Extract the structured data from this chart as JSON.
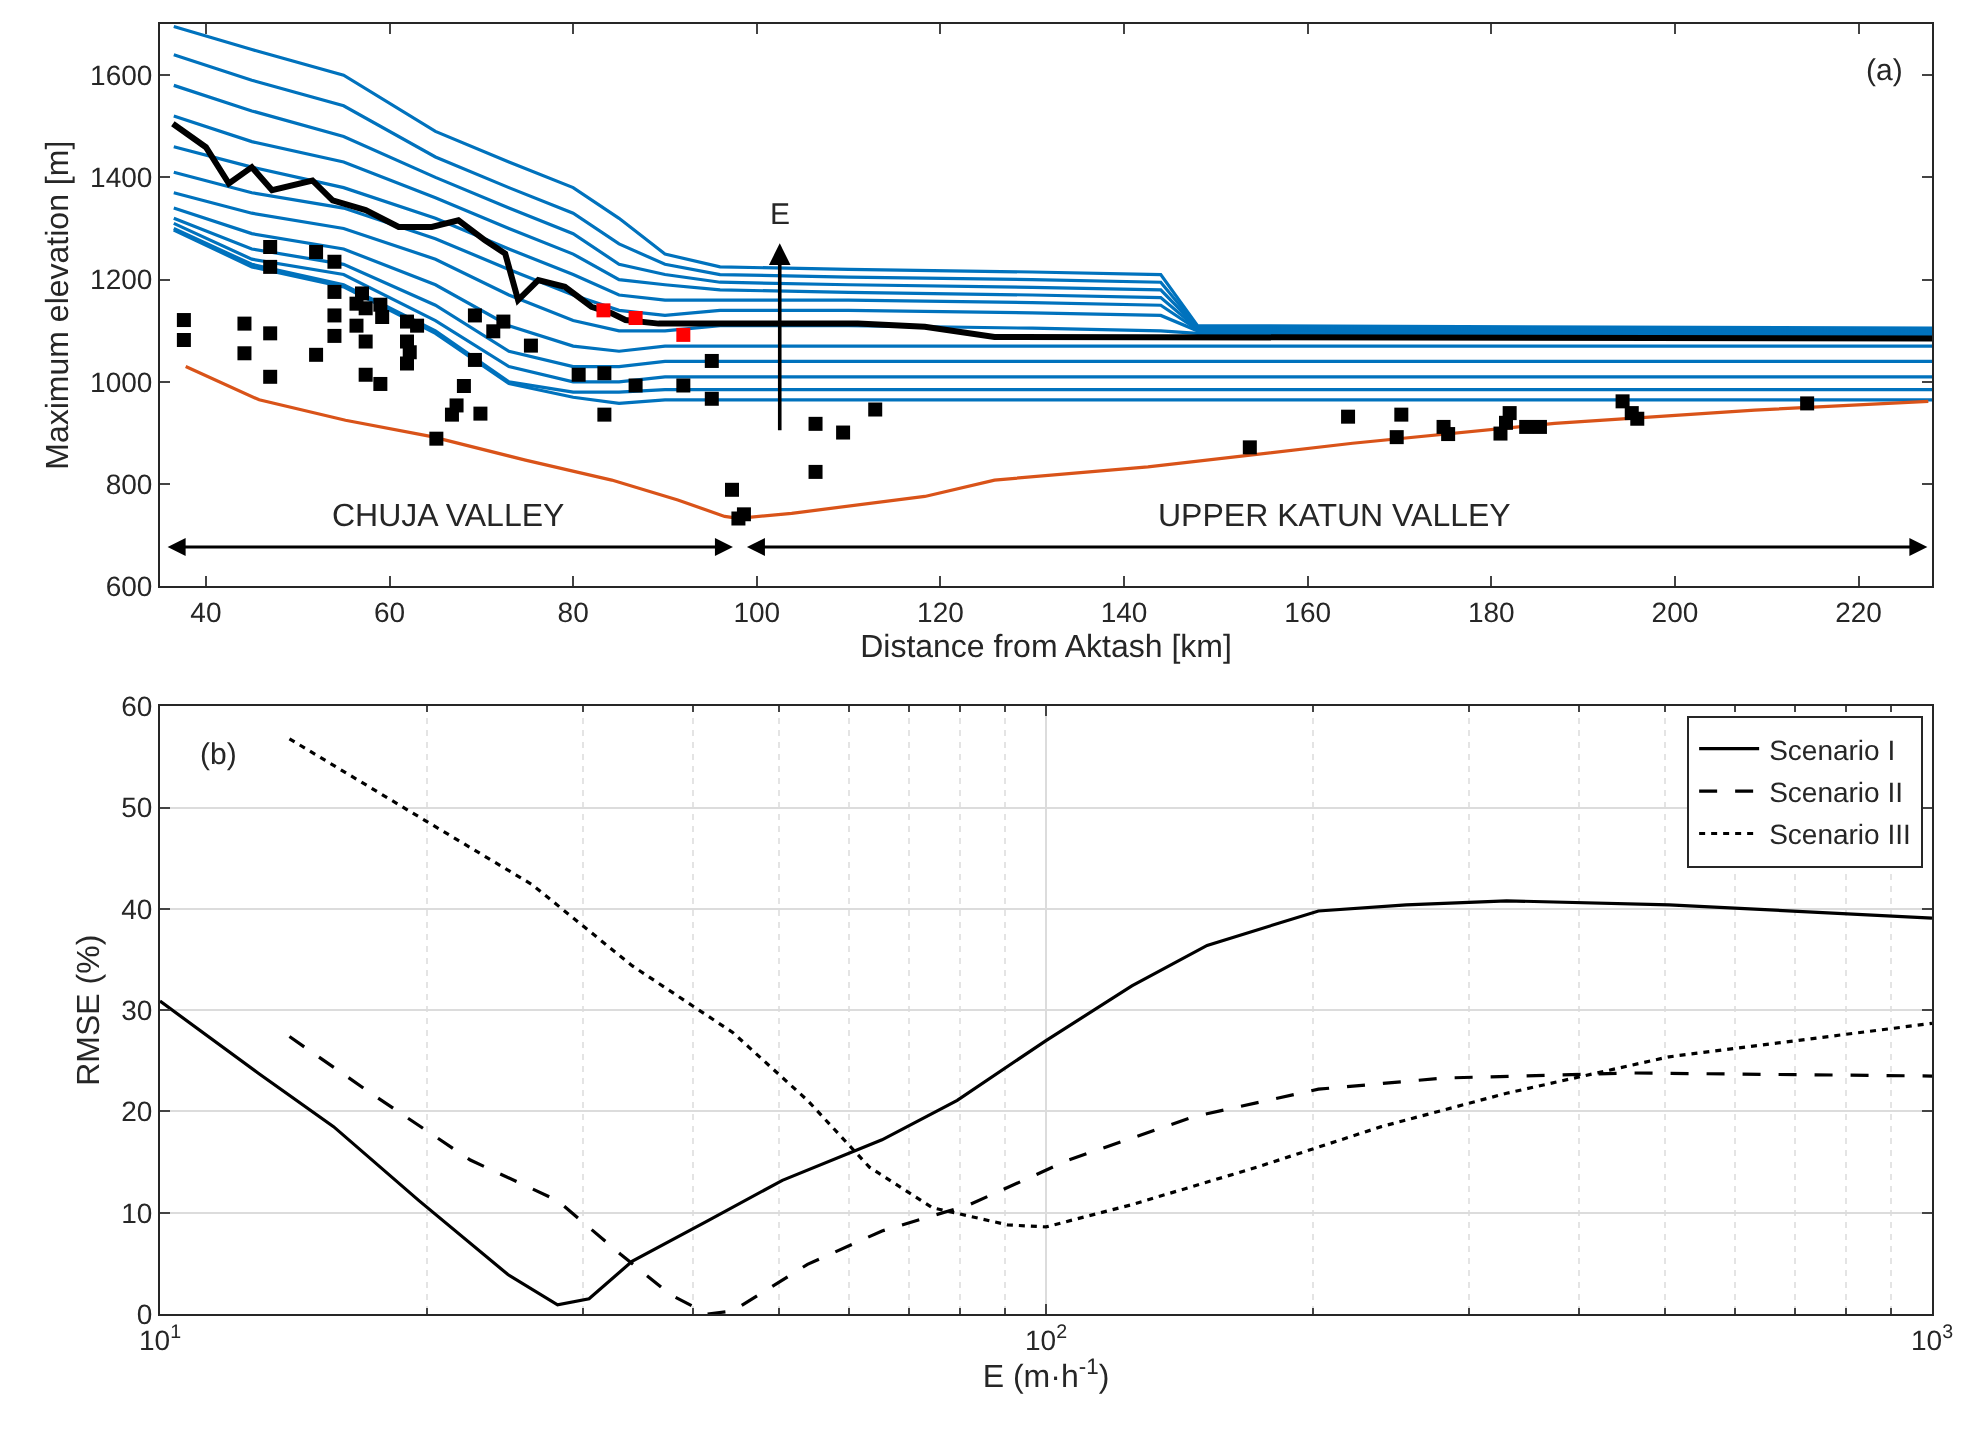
{
  "chart_data": [
    {
      "type": "line",
      "xlabel": "Distance from Aktash [km]",
      "ylabel": "Maximum elevation [m]",
      "xlim": [
        35,
        228
      ],
      "ylim": [
        600,
        1700
      ],
      "xticks": [
        40,
        60,
        80,
        100,
        120,
        140,
        160,
        180,
        200,
        220
      ],
      "yticks": [
        600,
        800,
        1000,
        1200,
        1400,
        1600
      ],
      "grid": false,
      "legend": false,
      "annotations": [
        "(a)",
        "E",
        "CHUJA VALLEY",
        "UPPER KATUN VALLEY"
      ],
      "series": [
        {
          "color": "#0072bd",
          "marker": "none",
          "x": [
            36.5,
            45,
            55,
            65,
            73,
            80,
            85,
            90,
            96,
            110,
            130,
            144,
            148,
            228
          ],
          "values": [
            1695,
            1650,
            1600,
            1490,
            1430,
            1380,
            1320,
            1250,
            1225,
            1220,
            1215,
            1210,
            1110,
            1105
          ]
        },
        {
          "color": "#0072bd",
          "marker": "none",
          "x": [
            36.5,
            45,
            55,
            65,
            73,
            80,
            85,
            90,
            96,
            110,
            130,
            144,
            148,
            228
          ],
          "values": [
            1640,
            1590,
            1540,
            1440,
            1380,
            1330,
            1270,
            1230,
            1210,
            1205,
            1200,
            1195,
            1108,
            1103
          ]
        },
        {
          "color": "#0072bd",
          "marker": "none",
          "x": [
            36.5,
            45,
            55,
            65,
            73,
            80,
            85,
            90,
            96,
            110,
            130,
            144,
            148,
            228
          ],
          "values": [
            1580,
            1530,
            1480,
            1400,
            1340,
            1290,
            1230,
            1210,
            1195,
            1190,
            1185,
            1180,
            1106,
            1100
          ]
        },
        {
          "color": "#0072bd",
          "marker": "none",
          "x": [
            36.5,
            45,
            55,
            65,
            73,
            80,
            85,
            90,
            96,
            110,
            130,
            144,
            148,
            228
          ],
          "values": [
            1520,
            1470,
            1430,
            1360,
            1300,
            1250,
            1200,
            1190,
            1180,
            1175,
            1170,
            1165,
            1104,
            1098
          ]
        },
        {
          "color": "#0072bd",
          "marker": "none",
          "x": [
            36.5,
            45,
            55,
            65,
            73,
            80,
            85,
            90,
            96,
            110,
            130,
            144,
            148,
            228
          ],
          "values": [
            1460,
            1420,
            1380,
            1320,
            1260,
            1210,
            1170,
            1160,
            1160,
            1160,
            1155,
            1150,
            1102,
            1096
          ]
        },
        {
          "color": "#0072bd",
          "marker": "none",
          "x": [
            36.5,
            45,
            55,
            65,
            73,
            80,
            85,
            90,
            96,
            110,
            130,
            144,
            148,
            228
          ],
          "values": [
            1410,
            1370,
            1340,
            1280,
            1220,
            1170,
            1140,
            1130,
            1140,
            1140,
            1135,
            1130,
            1100,
            1094
          ]
        },
        {
          "color": "#0072bd",
          "marker": "none",
          "x": [
            36.5,
            45,
            55,
            65,
            73,
            80,
            85,
            90,
            96,
            110,
            130,
            144,
            148,
            228
          ],
          "values": [
            1370,
            1330,
            1300,
            1240,
            1170,
            1120,
            1100,
            1100,
            1110,
            1110,
            1105,
            1100,
            1095,
            1090
          ]
        },
        {
          "color": "#0072bd",
          "marker": "none",
          "x": [
            36.5,
            45,
            55,
            65,
            73,
            80,
            85,
            90,
            96,
            110,
            130,
            144,
            148,
            228
          ],
          "values": [
            1340,
            1290,
            1260,
            1190,
            1110,
            1070,
            1060,
            1070,
            1070,
            1070,
            1070,
            1070,
            1070,
            1070
          ]
        },
        {
          "color": "#0072bd",
          "marker": "none",
          "x": [
            36.5,
            45,
            55,
            65,
            73,
            80,
            85,
            90,
            96,
            110,
            130,
            144,
            148,
            228
          ],
          "values": [
            1320,
            1260,
            1230,
            1150,
            1060,
            1030,
            1030,
            1040,
            1040,
            1040,
            1040,
            1040,
            1040,
            1040
          ]
        },
        {
          "color": "#0072bd",
          "marker": "none",
          "x": [
            36.5,
            45,
            55,
            65,
            73,
            80,
            85,
            90,
            96,
            110,
            130,
            144,
            148,
            228
          ],
          "values": [
            1310,
            1240,
            1210,
            1120,
            1030,
            1000,
            1000,
            1010,
            1010,
            1010,
            1010,
            1010,
            1010,
            1010
          ]
        },
        {
          "color": "#0072bd",
          "marker": "none",
          "x": [
            36.5,
            45,
            55,
            65,
            73,
            80,
            85,
            90,
            96,
            110,
            130,
            144,
            148,
            228
          ],
          "values": [
            1300,
            1230,
            1190,
            1100,
            1000,
            980,
            980,
            985,
            985,
            985,
            985,
            985,
            985,
            985
          ]
        },
        {
          "color": "#0072bd",
          "marker": "none",
          "x": [
            36.5,
            45,
            55,
            65,
            73,
            80,
            85,
            90,
            96,
            110,
            130,
            144,
            148,
            228
          ],
          "values": [
            1297,
            1225,
            1186,
            1095,
            997,
            970,
            958,
            965,
            965,
            965,
            965,
            965,
            965,
            965
          ]
        },
        {
          "color": "#000000",
          "marker": "none",
          "x": [
            36.4,
            40,
            42.5,
            45,
            47.2,
            51.6,
            53.8,
            57.4,
            61,
            64.6,
            67.5,
            70.4,
            72.6,
            74,
            76.2,
            79.1,
            82,
            84.2,
            85.7,
            89.3,
            96.5,
            111,
            118.3,
            125.9,
            228
          ],
          "values": [
            1505,
            1459,
            1388,
            1420,
            1375,
            1394,
            1355,
            1336,
            1303,
            1303,
            1316,
            1277,
            1251,
            1160,
            1199,
            1186,
            1147,
            1134,
            1121,
            1114,
            1114,
            1114,
            1108,
            1088,
            1085
          ]
        },
        {
          "color": "#d95319",
          "marker": "none",
          "x": [
            37.8,
            45.8,
            55.2,
            64.6,
            74.8,
            84.2,
            91.4,
            96.5,
            98,
            103.8,
            118.3,
            125.9,
            142.6,
            164.9,
            186.9,
            208.7,
            227.6
          ],
          "values": [
            1030,
            965,
            925,
            893,
            847,
            808,
            769,
            737,
            733,
            743,
            776,
            808,
            834,
            880,
            919,
            945,
            962
          ]
        },
        {
          "type": "scatter",
          "color": "#000000",
          "marker": "square",
          "x": [
            37.6,
            37.6,
            44.2,
            44.2,
            47,
            47,
            47,
            47,
            52,
            52,
            54,
            54,
            54,
            54,
            56.4,
            56.4,
            57,
            57.4,
            57.4,
            57.4,
            59,
            59.2,
            59,
            61.9,
            61.9,
            62.2,
            61.9,
            63,
            65.1,
            66.8,
            67.3,
            68.1,
            69.3,
            69.3,
            69.9,
            71.3,
            72.4,
            75.4,
            80.6,
            83.4,
            83.4,
            86.8,
            92,
            95.1,
            95.1,
            97.3,
            98,
            98.6,
            106.4,
            106.4,
            109.4,
            112.9,
            153.7,
            164.4,
            169.7,
            170.2,
            174.8,
            175.3,
            181,
            181.6,
            182,
            183.8,
            185.3,
            194.3,
            195.3,
            195.9,
            214.4
          ],
          "values": [
            1121,
            1082,
            1114,
            1056,
            1264,
            1225,
            1095,
            1010,
            1254,
            1053,
            1235,
            1176,
            1130,
            1090,
            1153,
            1110,
            1173,
            1144,
            1079,
            1014,
            1151,
            1127,
            996,
            1118,
            1079,
            1058,
            1036,
            1110,
            889,
            936,
            954,
            992,
            1043,
            1130,
            938,
            1099,
            1118,
            1071,
            1014,
            1017,
            936,
            993,
            993,
            1041,
            967,
            789,
            733,
            741,
            918,
            824,
            901,
            946,
            872,
            932,
            892,
            936,
            912,
            898,
            899,
            920,
            939,
            912,
            912,
            962,
            939,
            928,
            958
          ]
        },
        {
          "type": "scatter",
          "color": "#ff0000",
          "marker": "square",
          "x": [
            83.3,
            86.8,
            92
          ],
          "values": [
            1140,
            1125,
            1092
          ]
        }
      ]
    },
    {
      "type": "line",
      "xlabel": "E (m·h$^{-1}$)",
      "ylabel": "RMSE (%)",
      "log": "x",
      "xlim": [
        10,
        1000
      ],
      "ylim": [
        0,
        60
      ],
      "xticks": [
        {
          "value": 10,
          "label": "10$^{1}$"
        },
        {
          "value": 100,
          "label": "10$^{2}$"
        },
        {
          "value": 1000,
          "label": "10$^{3}$"
        }
      ],
      "yticks": [
        0,
        10,
        20,
        30,
        40,
        50,
        60
      ],
      "grid": true,
      "legend": "top right",
      "annotations": [
        "(b)"
      ],
      "series": [
        {
          "name": "Scenario I",
          "color": "#000000",
          "line_style": "solid",
          "marker": "none",
          "x": [
            10,
            12.9,
            15.7,
            19.6,
            24.7,
            28.1,
            30.5,
            34.1,
            41.5,
            50.4,
            65.3,
            79.4,
            100,
            125,
            152,
            203,
            255,
            331,
            505,
            1000
          ],
          "values": [
            30.9,
            23.8,
            18.5,
            11.2,
            3.9,
            0.9,
            1.5,
            5.2,
            9.2,
            13.2,
            17.2,
            21.1,
            27,
            32.4,
            36.4,
            39.8,
            40.4,
            40.8,
            40.4,
            39.1
          ]
        },
        {
          "name": "Scenario II",
          "color": "#000000",
          "line_style": "dashed",
          "marker": "none",
          "x": [
            14,
            17.3,
            22.4,
            28.1,
            33.1,
            37.7,
            41.5,
            44.3,
            53.8,
            65.3,
            82,
            106,
            147,
            203,
            281,
            458,
            1000
          ],
          "values": [
            27.4,
            21.8,
            15.2,
            11.2,
            5.9,
            1.9,
            0,
            0.3,
            4.9,
            8.2,
            10.8,
            15.2,
            19.5,
            22.2,
            23.3,
            23.8,
            23.5
          ]
        },
        {
          "name": "Scenario III",
          "color": "#000000",
          "line_style": "dotted",
          "marker": "none",
          "x": [
            14,
            19.6,
            26.3,
            34.1,
            44.3,
            53.8,
            63.2,
            74.4,
            90.5,
            100,
            125,
            173,
            239,
            331,
            505,
            1000
          ],
          "values": [
            56.8,
            49.1,
            42.4,
            34.4,
            27.8,
            21.1,
            14.5,
            10.5,
            8.8,
            8.6,
            10.8,
            14.5,
            18.5,
            21.8,
            25.4,
            28.7
          ]
        }
      ]
    }
  ]
}
